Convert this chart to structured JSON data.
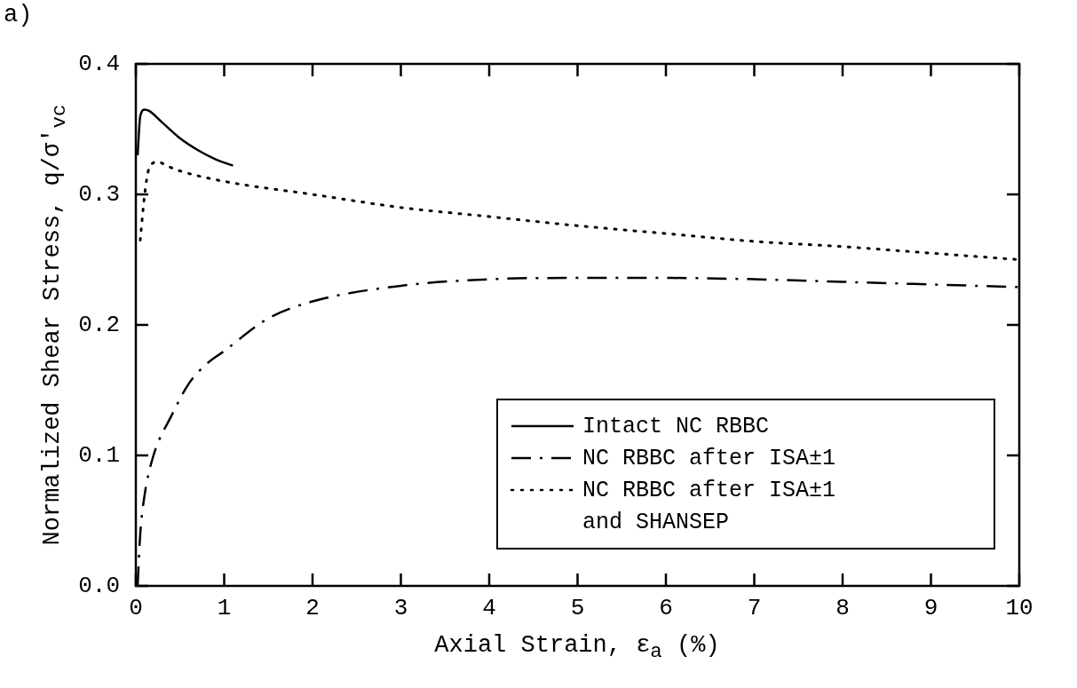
{
  "chart_data": {
    "type": "line",
    "title": "a)",
    "xlabel": "Axial Strain, ε$_{a}$  (%)",
    "ylabel": "Normalized Shear Stress, q/σ'$_{vc}$",
    "xlim": [
      0,
      10
    ],
    "xticks": [
      0,
      1,
      2,
      3,
      4,
      5,
      6,
      7,
      8,
      9,
      10
    ],
    "ylim": [
      0,
      0.4
    ],
    "yticks": [
      {
        "value": 0,
        "label": "0.0"
      },
      0.1,
      0.2,
      0.3,
      0.4
    ],
    "grid": false,
    "legend": "bottom right",
    "marker": "none",
    "series": [
      {
        "name": "Intact NC RBBC",
        "color": "#000000",
        "line_style": "solid",
        "x": [
          0.02,
          0.05,
          0.1,
          0.15,
          0.3,
          0.5,
          0.7,
          0.9,
          1.1
        ],
        "values": [
          0.33,
          0.36,
          0.365,
          0.364,
          0.355,
          0.343,
          0.334,
          0.327,
          0.322
        ]
      },
      {
        "name": "NC RBBC after ISA±1",
        "color": "#000000",
        "line_style": "dashdot",
        "x": [
          0.02,
          0.05,
          0.1,
          0.2,
          0.4,
          0.6,
          0.8,
          1,
          1.5,
          2,
          3,
          4,
          5,
          6,
          7,
          8,
          9,
          10
        ],
        "values": [
          0.0,
          0.04,
          0.07,
          0.1,
          0.13,
          0.155,
          0.17,
          0.18,
          0.205,
          0.218,
          0.23,
          0.235,
          0.236,
          0.236,
          0.235,
          0.233,
          0.231,
          0.229
        ]
      },
      {
        "name": "NC RBBC after ISA±1\nand SHANSEP",
        "color": "#000000",
        "line_style": "dotted",
        "x": [
          0.05,
          0.1,
          0.15,
          0.25,
          0.35,
          0.5,
          1,
          2,
          3,
          4,
          5,
          6,
          7,
          8,
          9,
          10
        ],
        "values": [
          0.265,
          0.3,
          0.32,
          0.325,
          0.322,
          0.318,
          0.31,
          0.3,
          0.29,
          0.283,
          0.276,
          0.27,
          0.264,
          0.26,
          0.255,
          0.25
        ]
      }
    ]
  }
}
